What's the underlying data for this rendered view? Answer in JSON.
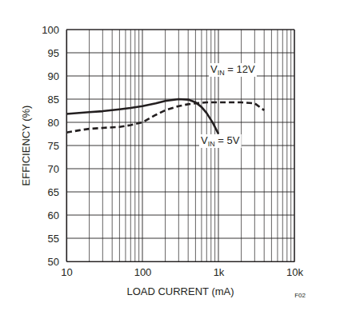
{
  "chart_data": {
    "type": "line",
    "x_label": "LOAD CURRENT (mA)",
    "y_label": "EFFICIENCY (%)",
    "annotation": "F02",
    "log": "x",
    "grid": true,
    "xlim": [
      10,
      10000
    ],
    "ylim": [
      50,
      100
    ],
    "xticks": [
      10,
      100,
      {
        "value": 1000,
        "label": "1k"
      },
      {
        "value": 10000,
        "label": "10k"
      }
    ],
    "yticks": [
      50,
      55,
      60,
      65,
      70,
      75,
      80,
      85,
      90,
      95,
      100
    ],
    "series": [
      {
        "name": "VIN = 12V",
        "color": "#231f20",
        "line_style": "dashed",
        "x": [
          10,
          15,
          20,
          30,
          50,
          70,
          100,
          150,
          200,
          300,
          400,
          500,
          700,
          1000,
          1500,
          2000,
          3000,
          4000
        ],
        "values": [
          77.8,
          78.3,
          78.6,
          78.8,
          79.0,
          79.4,
          80.0,
          81.6,
          82.6,
          83.5,
          83.9,
          84.1,
          84.3,
          84.3,
          84.3,
          84.3,
          84.1,
          82.6
        ]
      },
      {
        "name": "VIN = 5V",
        "color": "#231f20",
        "line_style": "solid",
        "x": [
          10,
          20,
          30,
          50,
          70,
          100,
          150,
          200,
          300,
          400,
          500,
          600,
          700,
          850,
          1000
        ],
        "values": [
          81.8,
          82.2,
          82.4,
          82.8,
          83.1,
          83.5,
          84.1,
          84.6,
          85.0,
          84.9,
          84.3,
          83.3,
          82.0,
          79.8,
          77.5
        ]
      }
    ]
  }
}
